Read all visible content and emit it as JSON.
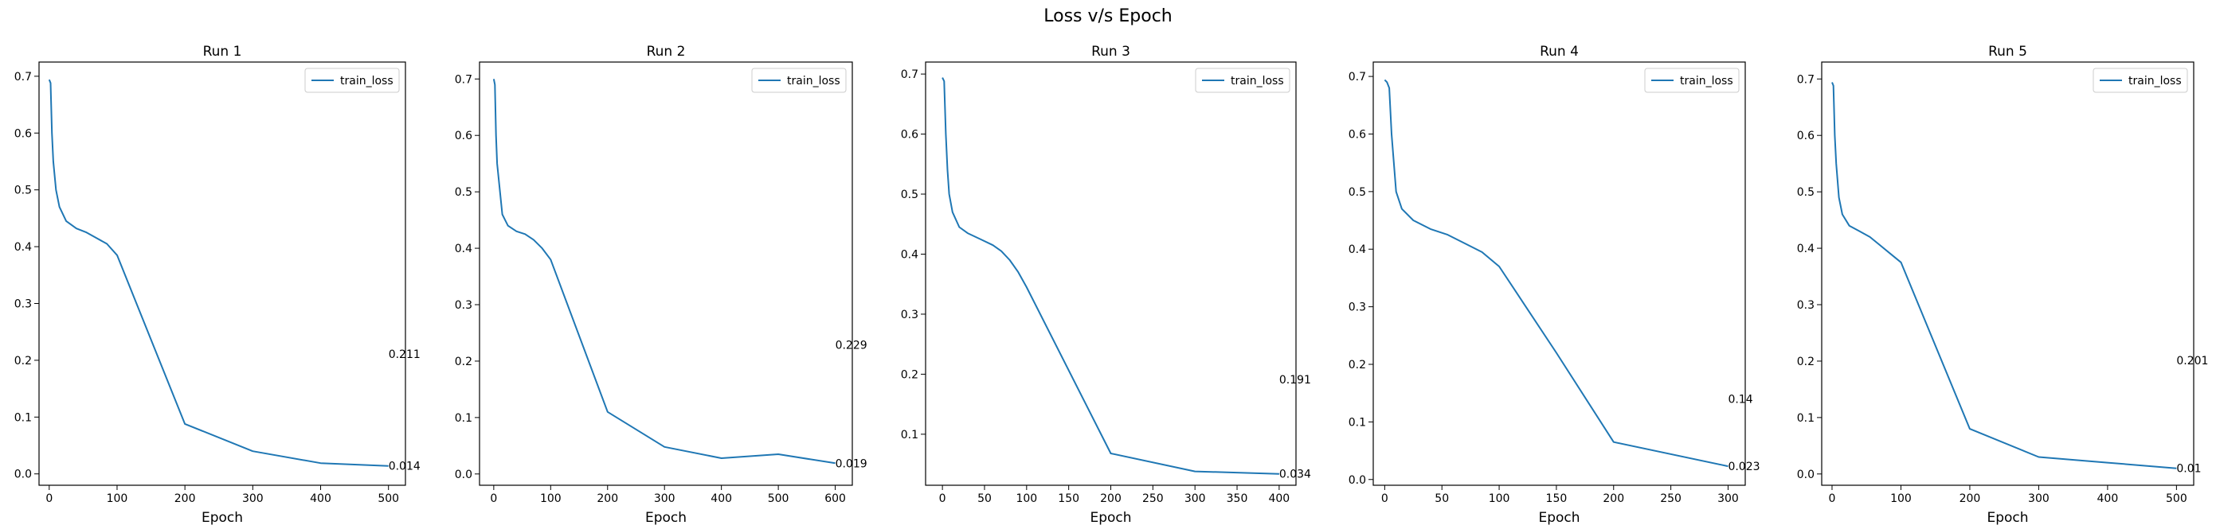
{
  "figure_title": "Loss v/s Epoch",
  "line_color": "#1f77b4",
  "chart_data": [
    {
      "type": "line",
      "title": "Run 1",
      "xlabel": "Epoch",
      "ylabel": "",
      "xlim": [
        -15,
        525
      ],
      "ylim": [
        -0.02,
        0.725
      ],
      "xticks": [
        0,
        100,
        200,
        300,
        400,
        500
      ],
      "yticks": [
        0.0,
        0.1,
        0.2,
        0.3,
        0.4,
        0.5,
        0.6,
        0.7
      ],
      "legend": "top-right",
      "grid": false,
      "series": [
        {
          "name": "train_loss",
          "x": [
            0,
            2,
            4,
            6,
            10,
            15,
            25,
            40,
            55,
            70,
            85,
            100,
            200,
            300,
            400,
            500
          ],
          "y": [
            0.694,
            0.688,
            0.6,
            0.55,
            0.5,
            0.47,
            0.445,
            0.432,
            0.425,
            0.415,
            0.405,
            0.385,
            0.088,
            0.04,
            0.019,
            0.014
          ]
        }
      ],
      "annotations": [
        {
          "x": 500,
          "y": 0.211,
          "text": "0.211"
        },
        {
          "x": 500,
          "y": 0.014,
          "text": "0.014"
        }
      ]
    },
    {
      "type": "line",
      "title": "Run 2",
      "xlabel": "Epoch",
      "ylabel": "",
      "xlim": [
        -25,
        630
      ],
      "ylim": [
        -0.02,
        0.73
      ],
      "xticks": [
        0,
        100,
        200,
        300,
        400,
        500,
        600
      ],
      "yticks": [
        0.0,
        0.1,
        0.2,
        0.3,
        0.4,
        0.5,
        0.6,
        0.7
      ],
      "legend": "top-right",
      "grid": false,
      "series": [
        {
          "name": "train_loss",
          "x": [
            0,
            2,
            4,
            6,
            10,
            15,
            25,
            40,
            55,
            70,
            85,
            100,
            200,
            300,
            400,
            500,
            600
          ],
          "y": [
            0.7,
            0.69,
            0.6,
            0.55,
            0.51,
            0.46,
            0.44,
            0.43,
            0.425,
            0.415,
            0.4,
            0.38,
            0.11,
            0.048,
            0.028,
            0.035,
            0.019
          ]
        }
      ],
      "annotations": [
        {
          "x": 600,
          "y": 0.229,
          "text": "0.229"
        },
        {
          "x": 600,
          "y": 0.019,
          "text": "0.019"
        }
      ]
    },
    {
      "type": "line",
      "title": "Run 3",
      "xlabel": "Epoch",
      "ylabel": "",
      "xlim": [
        -20,
        420
      ],
      "ylim": [
        0.015,
        0.72
      ],
      "xticks": [
        0,
        50,
        100,
        150,
        200,
        250,
        300,
        350,
        400
      ],
      "yticks": [
        0.1,
        0.2,
        0.3,
        0.4,
        0.5,
        0.6,
        0.7
      ],
      "legend": "top-right",
      "grid": false,
      "series": [
        {
          "name": "train_loss",
          "x": [
            0,
            2,
            4,
            6,
            8,
            12,
            20,
            30,
            45,
            60,
            70,
            80,
            90,
            100,
            200,
            300,
            400
          ],
          "y": [
            0.694,
            0.688,
            0.6,
            0.54,
            0.5,
            0.47,
            0.445,
            0.435,
            0.425,
            0.415,
            0.405,
            0.39,
            0.37,
            0.345,
            0.068,
            0.038,
            0.034
          ]
        }
      ],
      "annotations": [
        {
          "x": 400,
          "y": 0.191,
          "text": "0.191"
        },
        {
          "x": 400,
          "y": 0.034,
          "text": "0.034"
        }
      ]
    },
    {
      "type": "line",
      "title": "Run 4",
      "xlabel": "Epoch",
      "ylabel": "",
      "xlim": [
        -10,
        315
      ],
      "ylim": [
        -0.01,
        0.725
      ],
      "xticks": [
        0,
        50,
        100,
        150,
        200,
        250,
        300
      ],
      "yticks": [
        0.0,
        0.1,
        0.2,
        0.3,
        0.4,
        0.5,
        0.6,
        0.7
      ],
      "legend": "top-right",
      "grid": false,
      "series": [
        {
          "name": "train_loss",
          "x": [
            0,
            2,
            4,
            6,
            10,
            15,
            25,
            40,
            55,
            70,
            85,
            100,
            150,
            200,
            300
          ],
          "y": [
            0.694,
            0.69,
            0.68,
            0.6,
            0.5,
            0.47,
            0.45,
            0.435,
            0.425,
            0.41,
            0.395,
            0.37,
            0.22,
            0.065,
            0.023
          ]
        }
      ],
      "annotations": [
        {
          "x": 300,
          "y": 0.14,
          "text": "0.14"
        },
        {
          "x": 300,
          "y": 0.023,
          "text": "0.023"
        }
      ]
    },
    {
      "type": "line",
      "title": "Run 5",
      "xlabel": "Epoch",
      "ylabel": "",
      "xlim": [
        -15,
        525
      ],
      "ylim": [
        -0.02,
        0.73
      ],
      "xticks": [
        0,
        100,
        200,
        300,
        400,
        500
      ],
      "yticks": [
        0.0,
        0.1,
        0.2,
        0.3,
        0.4,
        0.5,
        0.6,
        0.7
      ],
      "legend": "top-right",
      "grid": false,
      "series": [
        {
          "name": "train_loss",
          "x": [
            0,
            2,
            4,
            6,
            10,
            15,
            25,
            40,
            55,
            70,
            85,
            100,
            200,
            300,
            400,
            500
          ],
          "y": [
            0.694,
            0.688,
            0.6,
            0.55,
            0.49,
            0.46,
            0.44,
            0.43,
            0.42,
            0.405,
            0.39,
            0.375,
            0.08,
            0.03,
            0.02,
            0.01
          ]
        }
      ],
      "annotations": [
        {
          "x": 500,
          "y": 0.201,
          "text": "0.201"
        },
        {
          "x": 500,
          "y": 0.01,
          "text": "0.01"
        }
      ]
    }
  ]
}
